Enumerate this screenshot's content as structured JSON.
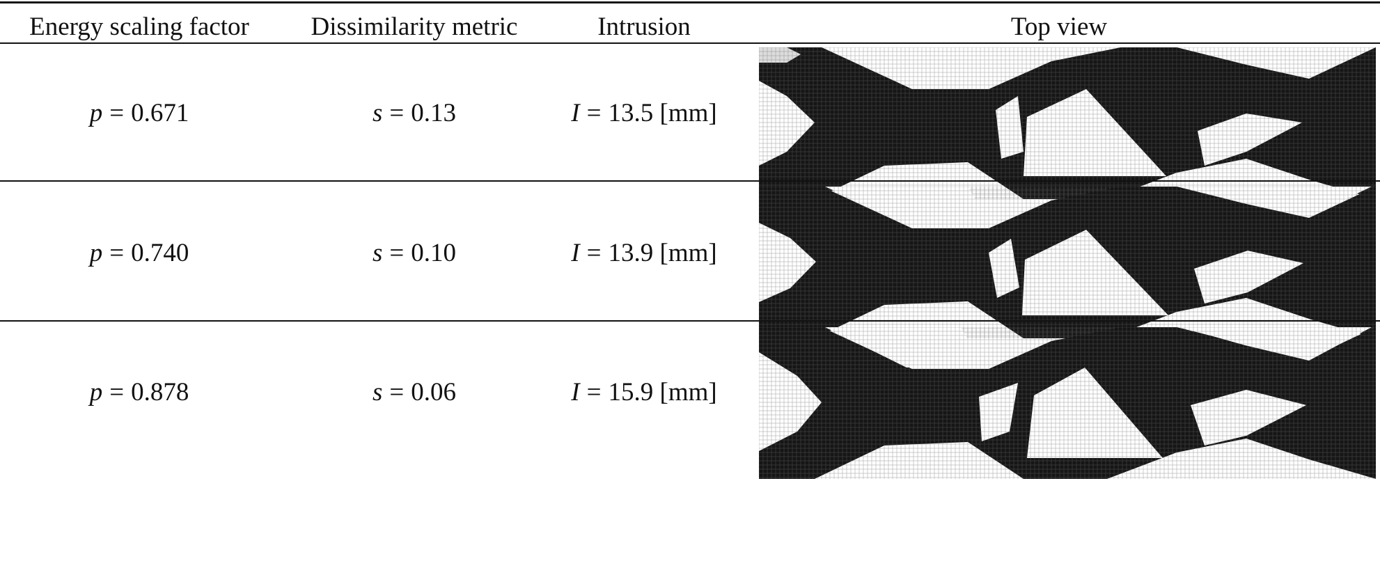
{
  "table": {
    "headers": {
      "energy": "Energy scaling factor",
      "dissimilarity": "Dissimilarity metric",
      "intrusion": "Intrusion",
      "top_view": "Top view"
    },
    "rows": [
      {
        "energy_var": "p",
        "energy_value": "0.671",
        "dissim_var": "s",
        "dissim_value": "0.13",
        "intrusion_var": "I",
        "intrusion_value": "13.5 [mm]"
      },
      {
        "energy_var": "p",
        "energy_value": "0.740",
        "dissim_var": "s",
        "dissim_value": "0.10",
        "intrusion_var": "I",
        "intrusion_value": "13.9 [mm]"
      },
      {
        "energy_var": "p",
        "energy_value": "0.878",
        "dissim_var": "s",
        "dissim_value": "0.06",
        "intrusion_var": "I",
        "intrusion_value": "15.9 [mm]"
      }
    ]
  },
  "colors": {
    "rule": "#111111",
    "structure": "#161616",
    "grid": "#6a6a6a",
    "void": "#ffffff"
  }
}
